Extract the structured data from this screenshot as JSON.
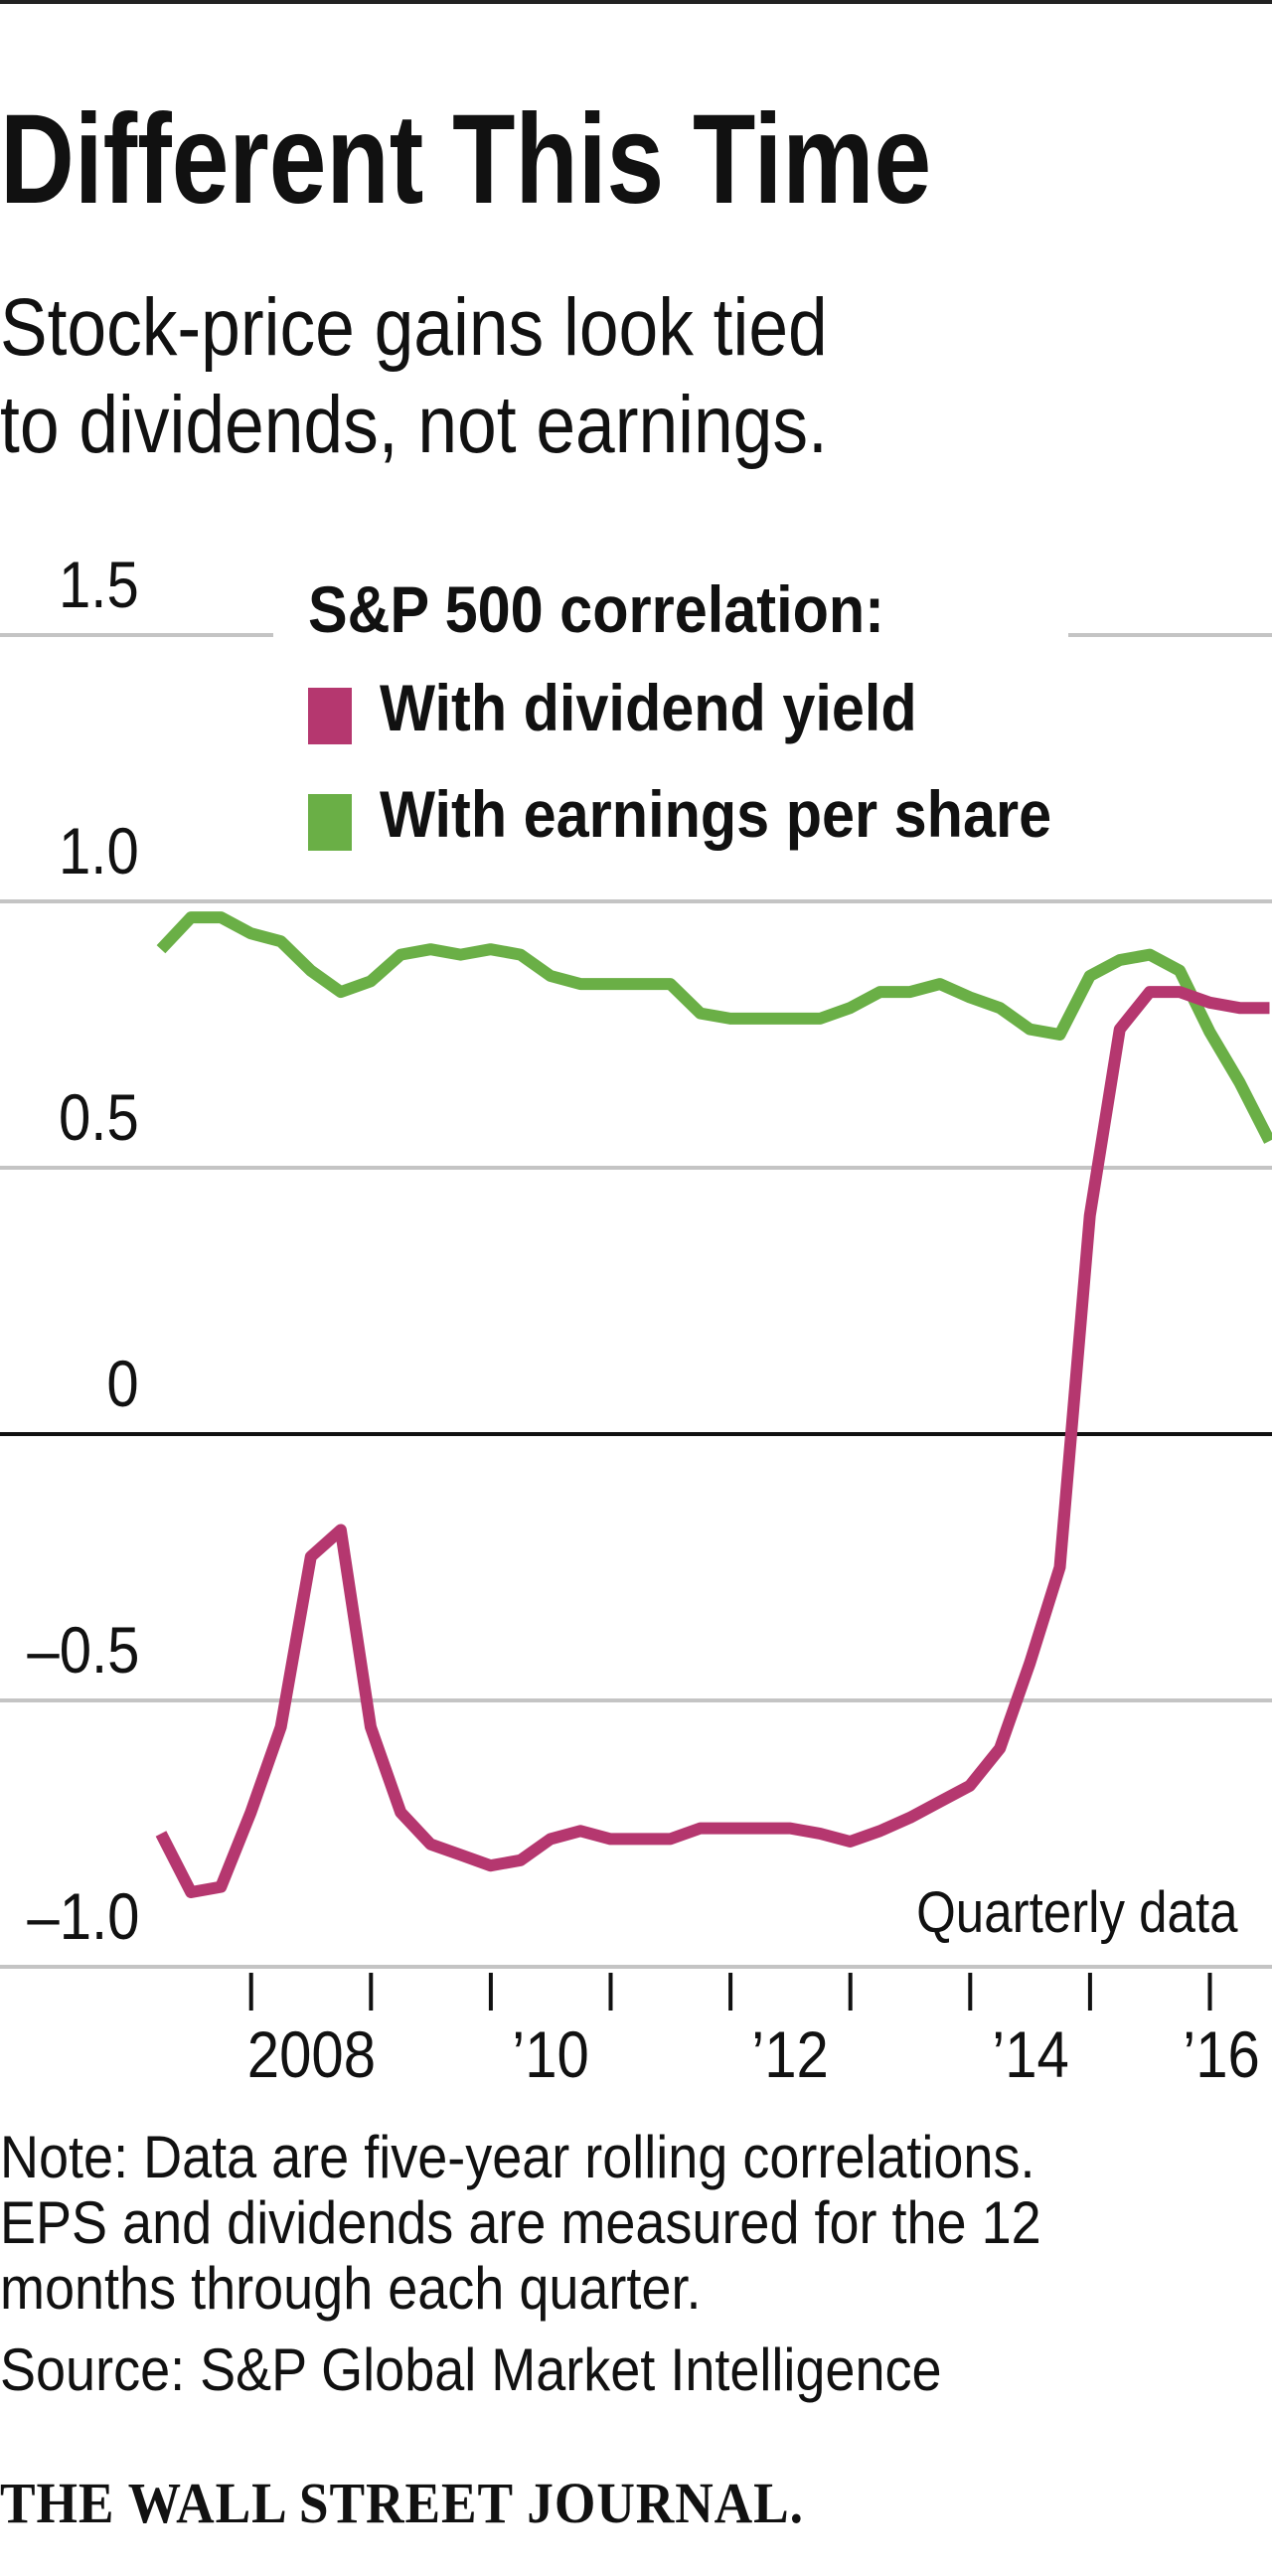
{
  "header": {
    "title": "Different This Time",
    "subtitle_lines": [
      "Stock-price gains look tied",
      "to dividends, not earnings."
    ]
  },
  "chart_data": {
    "type": "line",
    "title": "Different This Time",
    "subtitle": "Stock-price gains look tied to dividends, not earnings.",
    "legend_title": "S&P 500 correlation:",
    "legend_placement": "top",
    "annotation": "Quarterly data",
    "xlabel": "",
    "ylabel": "",
    "ylim": [
      -1.0,
      1.5
    ],
    "yticks": [
      1.5,
      1.0,
      0.5,
      0,
      -0.5,
      -1.0
    ],
    "ytick_labels": [
      "1.5",
      "1.0",
      "0.5",
      "0",
      "–0.5",
      "–1.0"
    ],
    "xticks": [
      2008,
      2009,
      2010,
      2011,
      2012,
      2013,
      2014,
      2015,
      2016
    ],
    "xtick_labels": [
      "2008",
      "’10",
      "’12",
      "’14",
      "’16"
    ],
    "xtick_label_years": [
      2008,
      2010,
      2012,
      2014,
      2016
    ],
    "grid": true,
    "x": [
      "2007Q1",
      "2007Q2",
      "2007Q3",
      "2007Q4",
      "2008Q1",
      "2008Q2",
      "2008Q3",
      "2008Q4",
      "2009Q1",
      "2009Q2",
      "2009Q3",
      "2009Q4",
      "2010Q1",
      "2010Q2",
      "2010Q3",
      "2010Q4",
      "2011Q1",
      "2011Q2",
      "2011Q3",
      "2011Q4",
      "2012Q1",
      "2012Q2",
      "2012Q3",
      "2012Q4",
      "2013Q1",
      "2013Q2",
      "2013Q3",
      "2013Q4",
      "2014Q1",
      "2014Q2",
      "2014Q3",
      "2014Q4",
      "2015Q1",
      "2015Q2",
      "2015Q3",
      "2015Q4",
      "2016Q1",
      "2016Q2"
    ],
    "series": [
      {
        "name": "With dividend yield",
        "color": "#B5376F",
        "values": [
          -0.75,
          -0.86,
          -0.85,
          -0.71,
          -0.55,
          -0.23,
          -0.18,
          -0.55,
          -0.71,
          -0.77,
          -0.79,
          -0.81,
          -0.8,
          -0.76,
          -0.745,
          -0.76,
          -0.76,
          -0.76,
          -0.74,
          -0.74,
          -0.74,
          -0.74,
          -0.75,
          -0.765,
          -0.745,
          -0.72,
          -0.69,
          -0.66,
          -0.59,
          -0.43,
          -0.25,
          0.41,
          0.76,
          0.83,
          0.83,
          0.81,
          0.8,
          0.8
        ]
      },
      {
        "name": "With earnings per share",
        "color": "#6AAF46",
        "values": [
          0.91,
          0.97,
          0.97,
          0.94,
          0.925,
          0.87,
          0.83,
          0.85,
          0.9,
          0.91,
          0.9,
          0.91,
          0.9,
          0.86,
          0.845,
          0.845,
          0.845,
          0.845,
          0.79,
          0.78,
          0.78,
          0.78,
          0.78,
          0.8,
          0.83,
          0.83,
          0.845,
          0.82,
          0.8,
          0.76,
          0.75,
          0.86,
          0.89,
          0.9,
          0.87,
          0.755,
          0.66,
          0.55
        ]
      }
    ]
  },
  "footer": {
    "note_lines": [
      "Note: Data are five-year rolling correlations.",
      "EPS and dividends are measured for the 12",
      "months through each quarter."
    ],
    "source": "Source: S&P Global Market Intelligence",
    "logo_text": "THE WALL STREET JOURNAL."
  }
}
